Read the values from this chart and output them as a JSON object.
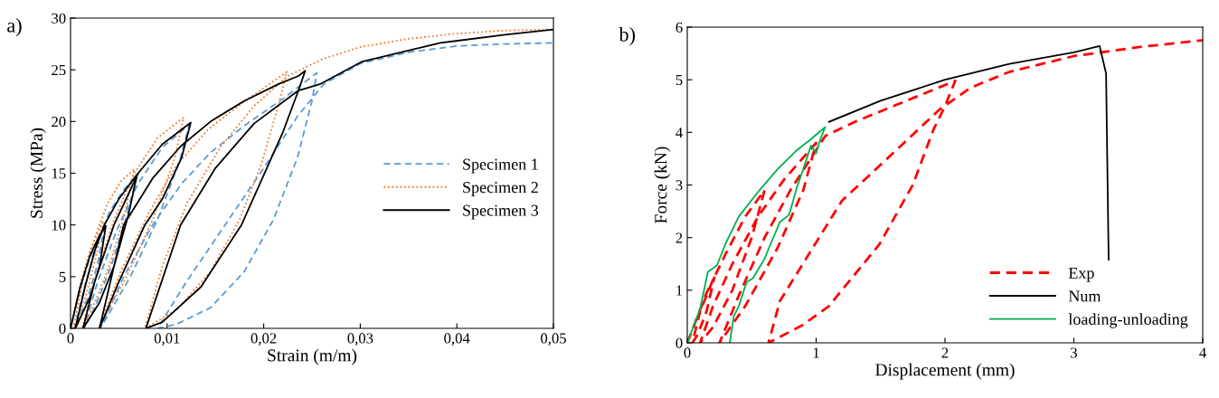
{
  "chart_data": [
    {
      "type": "line",
      "xlabel": "Strain (m/m)",
      "ylabel": "Stress (MPa)",
      "annotations": [
        "a)"
      ],
      "legend": "right",
      "grid": false,
      "xlim": [
        0,
        0.05
      ],
      "xticks": [
        0,
        {
          "value": 0.01,
          "label": "0,01"
        },
        {
          "value": 0.02,
          "label": "0,02"
        },
        {
          "value": 0.03,
          "label": "0,03"
        },
        {
          "value": 0.04,
          "label": "0,04"
        },
        {
          "value": 0.05,
          "label": "0,05"
        }
      ],
      "ylim": [
        0,
        30
      ],
      "yticks": [
        0,
        5,
        10,
        15,
        20,
        25,
        30
      ],
      "series": [
        {
          "name": "Specimen 1",
          "color": "#5b9bd5",
          "line_style": "dashed",
          "x": [
            0,
            0.001,
            0.002,
            0.0035,
            0.0028,
            0.0018,
            0.0008,
            0.0004,
            0.0015,
            0.0028,
            0.004,
            0.0055,
            0.0069,
            0.0058,
            0.0042,
            0.0025,
            0.0014,
            0.0028,
            0.0048,
            0.007,
            0.0095,
            0.0123,
            0.0113,
            0.009,
            0.0062,
            0.0031,
            0.0055,
            0.0085,
            0.0115,
            0.0145,
            0.018,
            0.022,
            0.0255,
            0.025,
            0.0235,
            0.021,
            0.018,
            0.0145,
            0.011,
            0.009,
            0.012,
            0.016,
            0.02,
            0.0235,
            0.0262,
            0.03,
            0.035,
            0.04,
            0.045,
            0.05
          ],
          "values": [
            0,
            3.8,
            6.8,
            9.8,
            6.2,
            3.0,
            0.8,
            0,
            4.2,
            8.2,
            11.2,
            13.4,
            14.8,
            10.8,
            6.0,
            2.0,
            0,
            4.5,
            9.5,
            14.0,
            17.5,
            19.7,
            16.2,
            10.5,
            5.0,
            0,
            5.0,
            10.0,
            14.0,
            17.0,
            19.6,
            22.2,
            24.7,
            22.0,
            16.5,
            10.5,
            5.5,
            2.0,
            0.4,
            0,
            4.5,
            10.0,
            15.5,
            20.5,
            23.6,
            25.6,
            26.7,
            27.3,
            27.5,
            27.6
          ]
        },
        {
          "name": "Specimen 2",
          "color": "#ed7d31",
          "line_style": "dotted",
          "x": [
            0,
            0.001,
            0.002,
            0.0034,
            0.0026,
            0.0016,
            0.0007,
            0.0003,
            0.0013,
            0.0026,
            0.0038,
            0.0052,
            0.0066,
            0.0056,
            0.004,
            0.0023,
            0.0012,
            0.0026,
            0.0045,
            0.0066,
            0.009,
            0.0117,
            0.0108,
            0.0085,
            0.0058,
            0.0029,
            0.0052,
            0.008,
            0.011,
            0.0142,
            0.0178,
            0.0224,
            0.0215,
            0.0198,
            0.0175,
            0.0145,
            0.011,
            0.0077,
            0.0095,
            0.012,
            0.0155,
            0.019,
            0.0225,
            0.026,
            0.03,
            0.035,
            0.04,
            0.045,
            0.05
          ],
          "values": [
            0,
            4.2,
            7.5,
            10.4,
            6.8,
            3.2,
            0.8,
            0,
            4.8,
            9.0,
            12.0,
            14.2,
            15.4,
            11.0,
            6.0,
            2.0,
            0,
            5.0,
            10.5,
            15.0,
            18.4,
            20.4,
            16.5,
            10.5,
            5.0,
            0,
            5.5,
            11.0,
            15.8,
            19.2,
            21.8,
            24.8,
            21.5,
            16.0,
            10.5,
            5.5,
            1.8,
            0,
            6.0,
            12.0,
            17.5,
            21.5,
            24.4,
            26.0,
            27.2,
            28.0,
            28.5,
            28.8,
            28.9
          ]
        },
        {
          "name": "Specimen 3",
          "color": "#000000",
          "line_style": "solid",
          "x": [
            0,
            0.001,
            0.002,
            0.003,
            0.00365,
            0.003,
            0.002,
            0.001,
            0.0005,
            0.0015,
            0.0025,
            0.0035,
            0.005,
            0.0069,
            0.006,
            0.0045,
            0.003,
            0.0013,
            0.0025,
            0.0045,
            0.007,
            0.0095,
            0.01245,
            0.0115,
            0.0095,
            0.0077,
            0.005,
            0.003,
            0.0055,
            0.0085,
            0.0114,
            0.0145,
            0.018,
            0.0215,
            0.0236,
            0.0243,
            0.0236,
            0.022,
            0.0177,
            0.0135,
            0.0095,
            0.0078,
            0.0114,
            0.015,
            0.019,
            0.0236,
            0.0258,
            0.0302,
            0.0383,
            0.045,
            0.05
          ],
          "values": [
            0,
            4.0,
            7.0,
            9.0,
            9.9,
            6.0,
            3.0,
            1.0,
            0,
            4.0,
            7.5,
            10.0,
            12.5,
            14.9,
            11.0,
            6.0,
            2.5,
            0,
            4.5,
            10.0,
            15.0,
            17.8,
            19.9,
            16.5,
            12.5,
            10.0,
            4.5,
            0,
            10.0,
            14.5,
            17.6,
            20.0,
            22.0,
            23.6,
            24.4,
            24.9,
            23.0,
            19.0,
            10.0,
            4.0,
            0.6,
            0,
            10.0,
            15.5,
            19.8,
            23.0,
            23.6,
            25.8,
            27.6,
            28.4,
            28.9
          ]
        }
      ]
    },
    {
      "type": "line",
      "xlabel": "Displacement (mm)",
      "ylabel": "Force (kN)",
      "annotations": [
        "b)"
      ],
      "legend": "bottom right",
      "grid": false,
      "xlim": [
        0,
        4
      ],
      "xticks": [
        0,
        1,
        2,
        3,
        4
      ],
      "ylim": [
        0,
        6
      ],
      "yticks": [
        0,
        1,
        2,
        3,
        4,
        5,
        6
      ],
      "series": [
        {
          "name": "Exp",
          "color": "#ff0000",
          "line_style": "dashed",
          "x": [
            0,
            0.08,
            0.15,
            0.21,
            0.15,
            0.08,
            0.04,
            0.1,
            0.2,
            0.3,
            0.45,
            0.6,
            0.5,
            0.35,
            0.2,
            0.1,
            0.2,
            0.35,
            0.55,
            0.75,
            1.0,
            0.9,
            0.7,
            0.45,
            0.25,
            0.4,
            0.6,
            0.8,
            1.07,
            1.3,
            1.6,
            1.85,
            2.08,
            2.0,
            1.91,
            1.75,
            1.49,
            1.1,
            0.89,
            0.63,
            0.72,
            0.96,
            1.2,
            1.49,
            1.96,
            2.2,
            2.5,
            3.0,
            3.5,
            4.0
          ],
          "values": [
            0,
            0.5,
            0.95,
            1.24,
            0.6,
            0.15,
            0,
            0.6,
            1.2,
            1.7,
            2.4,
            2.9,
            2.0,
            1.0,
            0.3,
            0,
            0.7,
            1.5,
            2.4,
            3.1,
            3.8,
            2.9,
            1.8,
            0.7,
            0,
            0.9,
            2.0,
            2.9,
            3.93,
            4.2,
            4.5,
            4.75,
            4.98,
            4.5,
            4.05,
            3.0,
            1.87,
            0.7,
            0.33,
            0,
            0.8,
            1.75,
            2.7,
            3.36,
            4.44,
            4.85,
            5.15,
            5.45,
            5.62,
            5.75
          ]
        },
        {
          "name": "Num",
          "color": "#000000",
          "line_style": "solid",
          "x": [
            1.1,
            1.5,
            2.0,
            2.5,
            3.0,
            3.2,
            3.25,
            3.27
          ],
          "values": [
            4.2,
            4.6,
            5.0,
            5.3,
            5.52,
            5.64,
            5.12,
            1.58
          ]
        },
        {
          "name": "loading-unloading",
          "color": "#00b050",
          "line_style": "solid",
          "x": [
            0,
            0.1,
            0.16,
            0.23,
            0.3,
            0.4,
            0.56,
            0.7,
            0.84,
            0.95,
            1.07,
            1.03,
            1.0,
            0.96,
            0.9,
            0.85,
            0.79,
            0.72,
            0.65,
            0.6,
            0.51,
            0.46,
            0.4,
            0.36,
            0.33
          ],
          "values": [
            0,
            0.65,
            1.35,
            1.47,
            1.9,
            2.4,
            2.9,
            3.3,
            3.64,
            3.85,
            4.1,
            3.85,
            3.6,
            3.75,
            3.3,
            2.95,
            2.43,
            2.3,
            1.9,
            1.6,
            1.23,
            1.15,
            0.7,
            0.5,
            0
          ]
        }
      ]
    }
  ]
}
